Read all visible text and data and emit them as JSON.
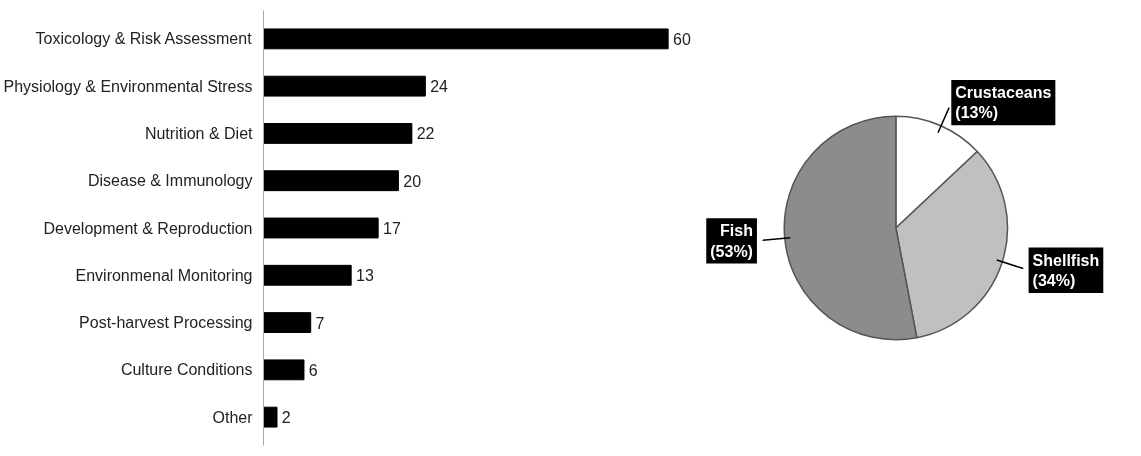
{
  "chart_data": [
    {
      "type": "bar",
      "orientation": "horizontal",
      "data_labels": true,
      "grid": false,
      "categories": [
        "Toxicology & Risk Assessment",
        "Physiology & Environmental Stress",
        "Nutrition & Diet",
        "Disease & Immunology",
        "Development & Reproduction",
        "Environmenal Monitoring",
        "Post-harvest Processing",
        "Culture Conditions",
        "Other"
      ],
      "values": [
        60,
        24,
        22,
        20,
        17,
        13,
        7,
        6,
        2
      ],
      "color": "#000000"
    },
    {
      "type": "pie",
      "categories": [
        "Crustaceans",
        "Shellfish",
        "Fish"
      ],
      "values": [
        13,
        34,
        53
      ],
      "value_labels": [
        "(13%)",
        "(34%)",
        "(53%)"
      ],
      "colors": [
        "#ffffff",
        "#c0c0c0",
        "#8c8c8c"
      ]
    }
  ]
}
